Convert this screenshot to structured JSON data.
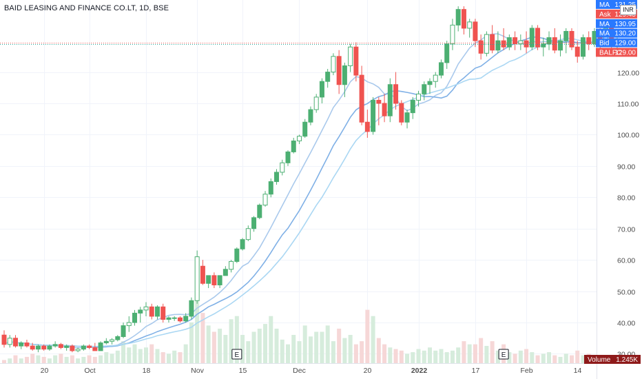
{
  "title": "BAID LEASING AND FINANCE CO.LT, 1D, BSE",
  "currency_badge": "INR",
  "event_marker": "E",
  "colors": {
    "up": "#26a69a",
    "up_fill": "#ffffff",
    "up_green": "#4caf72",
    "down": "#ef5350",
    "vol_up": "#d6ecdc",
    "vol_down": "#f6d7d7",
    "ma_fast": "#a9c9ec",
    "ma_mid": "#7fb0e6",
    "ma_slow": "#aad7f3",
    "ma_tag": "#2979ff",
    "ask_tag": "#ef5350",
    "bid_tag": "#2979ff",
    "symbol_tag": "#ef5350",
    "volume_tag": "#8e1a1a"
  },
  "price_labels": [
    {
      "name": "MA",
      "value": "131.25",
      "kind": "ma"
    },
    {
      "name": "Ask",
      "value": "129.45",
      "kind": "ask"
    },
    {
      "name": "MA",
      "value": "130.95",
      "kind": "ma"
    },
    {
      "name": "MA",
      "value": "130.20",
      "kind": "ma"
    },
    {
      "name": "Bid",
      "value": "129.00",
      "kind": "bid"
    },
    {
      "name": "BALFC",
      "value": "129.00",
      "kind": "symbol"
    }
  ],
  "volume_label": {
    "name": "Volume",
    "value": "1.245K"
  },
  "chart_data": {
    "type": "candlestick",
    "y_ticks": [
      30,
      40,
      50,
      60,
      70,
      80,
      90,
      100,
      110,
      120
    ],
    "y_tick_labels": [
      "30.00",
      "40.00",
      "50.00",
      "60.00",
      "70.00",
      "80.00",
      "90.00",
      "100.00",
      "110.00",
      "120.00"
    ],
    "ylim": [
      27,
      142
    ],
    "x_tick_labels": [
      {
        "label": "20",
        "index": 7
      },
      {
        "label": "Oct",
        "index": 15
      },
      {
        "label": "18",
        "index": 25
      },
      {
        "label": "Nov",
        "index": 34
      },
      {
        "label": "15",
        "index": 42
      },
      {
        "label": "Dec",
        "index": 52
      },
      {
        "label": "20",
        "index": 64
      },
      {
        "label": "2022",
        "index": 73
      },
      {
        "label": "17",
        "index": 83
      },
      {
        "label": "Feb",
        "index": 92
      },
      {
        "label": "14",
        "index": 101
      }
    ],
    "earnings_at": [
      41,
      88
    ],
    "moving_averages": [
      "MA",
      "MA",
      "MA"
    ],
    "ohlc": [
      [
        36,
        37.5,
        32,
        33
      ],
      [
        33,
        36,
        32,
        35
      ],
      [
        35,
        36,
        32,
        32.5
      ],
      [
        32.5,
        34,
        31.5,
        33.5
      ],
      [
        33.5,
        34.5,
        32,
        32.5
      ],
      [
        32.5,
        33.5,
        31,
        31.5
      ],
      [
        31.5,
        33,
        30.5,
        32.5
      ],
      [
        32.5,
        33,
        31,
        31.5
      ],
      [
        31.5,
        33,
        31,
        32.5
      ],
      [
        32.5,
        34,
        32,
        33
      ],
      [
        33,
        33.5,
        31.5,
        32
      ],
      [
        32,
        33,
        31,
        32.5
      ],
      [
        32.5,
        33,
        30.5,
        31
      ],
      [
        31,
        32,
        30.5,
        31.5
      ],
      [
        31.5,
        33,
        31,
        32.5
      ],
      [
        32.5,
        33,
        31.5,
        32
      ],
      [
        32,
        33.5,
        31,
        31
      ],
      [
        31,
        34,
        31,
        33.5
      ],
      [
        33.5,
        35,
        33,
        34
      ],
      [
        34,
        35,
        33,
        34.5
      ],
      [
        34.5,
        36,
        34,
        35.5
      ],
      [
        35.5,
        40,
        35,
        39
      ],
      [
        39,
        42,
        37,
        40
      ],
      [
        40,
        44,
        39,
        43
      ],
      [
        43,
        45,
        40,
        44
      ],
      [
        44,
        46.5,
        42,
        45
      ],
      [
        45,
        46,
        41,
        42
      ],
      [
        42,
        45.5,
        41,
        45
      ],
      [
        45,
        46,
        40,
        41
      ],
      [
        41,
        42,
        40,
        41.5
      ],
      [
        41.5,
        42,
        40.5,
        41.5
      ],
      [
        41.5,
        42,
        40,
        40.5
      ],
      [
        40.5,
        43,
        40,
        42
      ],
      [
        42,
        48,
        41,
        47
      ],
      [
        47,
        63,
        46,
        61
      ],
      [
        58,
        60,
        52,
        52.5
      ],
      [
        52.5,
        55,
        51,
        55
      ],
      [
        55,
        56,
        51,
        52
      ],
      [
        52,
        55,
        51,
        55
      ],
      [
        55,
        58,
        55,
        57
      ],
      [
        57,
        60,
        56,
        59.5
      ],
      [
        59.5,
        64,
        59,
        63.5
      ],
      [
        63.5,
        67,
        63,
        66.5
      ],
      [
        66.5,
        71,
        66,
        70
      ],
      [
        70,
        74,
        69,
        73.5
      ],
      [
        73.5,
        78,
        73,
        77.5
      ],
      [
        77.5,
        82,
        77,
        81
      ],
      [
        81,
        86,
        80,
        85
      ],
      [
        85,
        89,
        84,
        88
      ],
      [
        88,
        92,
        87,
        91
      ],
      [
        91,
        95,
        90,
        94.5
      ],
      [
        94.5,
        99,
        94,
        98
      ],
      [
        98,
        100,
        97,
        99.5
      ],
      [
        99.5,
        105,
        99,
        104
      ],
      [
        104,
        109,
        103,
        108
      ],
      [
        108,
        113,
        107,
        112
      ],
      [
        112,
        118,
        110,
        117
      ],
      [
        117,
        121,
        115,
        120
      ],
      [
        120,
        126,
        119,
        125
      ],
      [
        125,
        127,
        113,
        116
      ],
      [
        116,
        123,
        112,
        122
      ],
      [
        122,
        129,
        120,
        128
      ],
      [
        128,
        129.5,
        117,
        119
      ],
      [
        119,
        122,
        103,
        104
      ],
      [
        104,
        108,
        99,
        101
      ],
      [
        101,
        112,
        100,
        111
      ],
      [
        111,
        112,
        103,
        110
      ],
      [
        110,
        113,
        104,
        106
      ],
      [
        106,
        118,
        104,
        116
      ],
      [
        116,
        120,
        108,
        110
      ],
      [
        110,
        111,
        103,
        104
      ],
      [
        104,
        108,
        102,
        107
      ],
      [
        107,
        112,
        105,
        111
      ],
      [
        111,
        114,
        109,
        113
      ],
      [
        113,
        117,
        111,
        116
      ],
      [
        116,
        118,
        113,
        117
      ],
      [
        117,
        120,
        115,
        119
      ],
      [
        119,
        124,
        118,
        123
      ],
      [
        123,
        130,
        121,
        129
      ],
      [
        129,
        137,
        127,
        135
      ],
      [
        135,
        141,
        133,
        140
      ],
      [
        140,
        141,
        132,
        134
      ],
      [
        134,
        137,
        131,
        136
      ],
      [
        136,
        137,
        128,
        130
      ],
      [
        130,
        132,
        124,
        126
      ],
      [
        126,
        133,
        125,
        132
      ],
      [
        132,
        135,
        126,
        127
      ],
      [
        127,
        133,
        126,
        130
      ],
      [
        130,
        134,
        127,
        128
      ],
      [
        128,
        132,
        127,
        131
      ],
      [
        131,
        133,
        127,
        129
      ],
      [
        129,
        132,
        127,
        130
      ],
      [
        130,
        133,
        126,
        128
      ],
      [
        128,
        135,
        127,
        134
      ],
      [
        134,
        135,
        127,
        128
      ],
      [
        128,
        131,
        125,
        129
      ],
      [
        129,
        133,
        127,
        131
      ],
      [
        131,
        134,
        126,
        127
      ],
      [
        127,
        132,
        125,
        130
      ],
      [
        130,
        134,
        126,
        133
      ],
      [
        133,
        134,
        127,
        128
      ],
      [
        128,
        130,
        123,
        125
      ],
      [
        125,
        132,
        124,
        131
      ],
      [
        131,
        133,
        127,
        129
      ],
      [
        129,
        134,
        128,
        133
      ],
      [
        133,
        134,
        127,
        129
      ],
      [
        129,
        136,
        128,
        134
      ],
      [
        134,
        135,
        125,
        129
      ],
      [
        129,
        131,
        127,
        129
      ]
    ],
    "volume": [
      2,
      3,
      5,
      3,
      4,
      6,
      5,
      4,
      3,
      5,
      6,
      4,
      5,
      3,
      4,
      5,
      4,
      5,
      7,
      6,
      8,
      14,
      10,
      12,
      9,
      10,
      12,
      9,
      7,
      6,
      8,
      7,
      12,
      26,
      40,
      32,
      24,
      20,
      22,
      18,
      28,
      30,
      18,
      14,
      20,
      22,
      25,
      30,
      22,
      15,
      12,
      18,
      14,
      24,
      17,
      20,
      20,
      24,
      14,
      22,
      16,
      18,
      12,
      14,
      34,
      30,
      16,
      12,
      10,
      9,
      8,
      6,
      7,
      9,
      8,
      10,
      8,
      9,
      7,
      8,
      10,
      14,
      12,
      12,
      16,
      11,
      14,
      8,
      12,
      7,
      6,
      8,
      9,
      7,
      5,
      6,
      7,
      5,
      4,
      6,
      5,
      8,
      5,
      6,
      4
    ],
    "volume_max": 47
  }
}
